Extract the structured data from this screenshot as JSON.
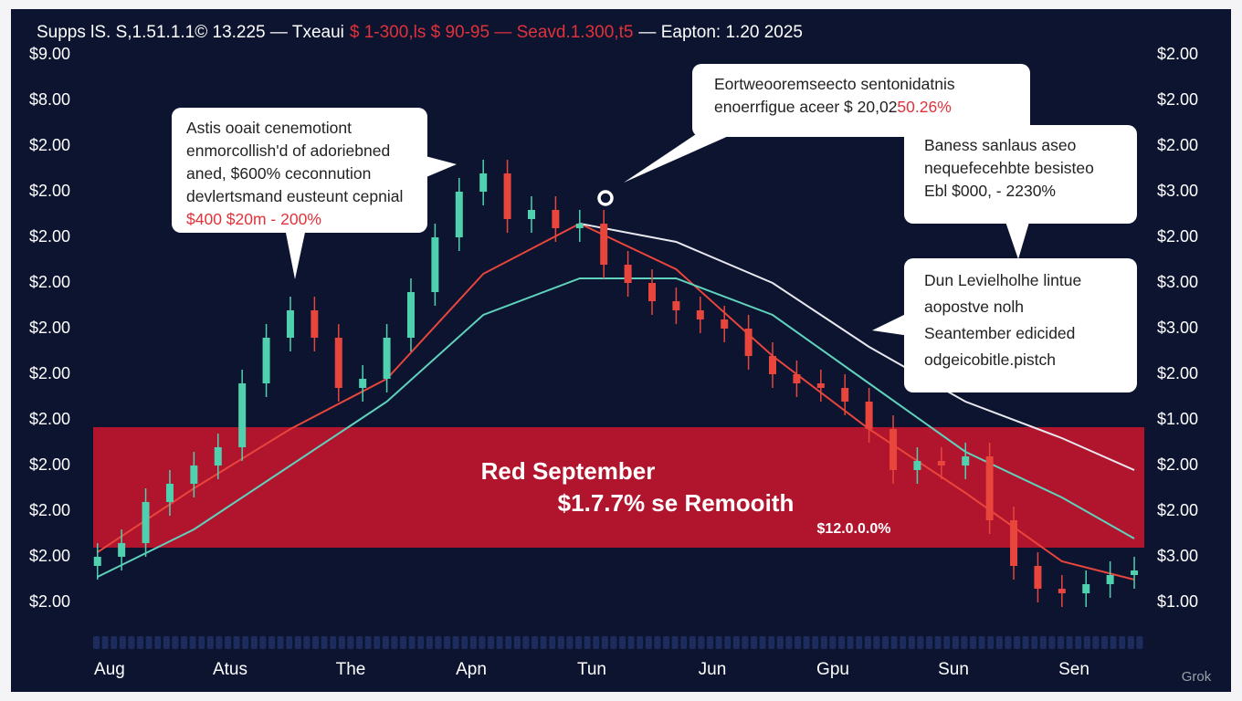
{
  "chart_data": {
    "type": "candlestick",
    "title": [
      {
        "text": "Supps lS. S,1.51.1.1© 13.225 — Txeaui",
        "color": "#ffffff"
      },
      {
        "text": "$ 1-300,ls $ 90-95 — Seavd.1.300,t5",
        "color": "#e0323a"
      },
      {
        "text": "— Eapton: 1.20 2025",
        "color": "#ffffff"
      }
    ],
    "x": [
      -0.1,
      0.1,
      0.3,
      0.5,
      0.7,
      0.9,
      1.1,
      1.3,
      1.5,
      1.7,
      1.9,
      2.1,
      2.3,
      2.5,
      2.7,
      2.9,
      3.1,
      3.3,
      3.5,
      3.7,
      3.9,
      4.1,
      4.3,
      4.5,
      4.7,
      4.9,
      5.1,
      5.3,
      5.5,
      5.7,
      5.9,
      6.1,
      6.3,
      6.5,
      6.7,
      6.9,
      7.1,
      7.3,
      7.5,
      7.7,
      7.9,
      8.1,
      8.3,
      8.5
    ],
    "open": [
      0.8,
      1.0,
      1.3,
      2.2,
      2.6,
      3.0,
      3.4,
      4.8,
      5.8,
      6.4,
      5.8,
      4.7,
      4.9,
      5.8,
      6.8,
      8.0,
      9.0,
      9.4,
      8.4,
      8.6,
      8.2,
      8.3,
      7.4,
      7.0,
      6.6,
      6.4,
      6.2,
      6.0,
      5.4,
      5.0,
      4.8,
      4.7,
      4.4,
      3.8,
      2.9,
      3.1,
      3.0,
      3.2,
      1.8,
      0.8,
      0.3,
      0.2,
      0.4,
      0.6
    ],
    "high": [
      1.3,
      1.6,
      2.5,
      2.9,
      3.3,
      3.7,
      5.1,
      6.1,
      6.7,
      6.7,
      6.1,
      5.2,
      6.1,
      7.1,
      8.3,
      9.3,
      9.7,
      9.7,
      8.9,
      8.9,
      8.6,
      8.6,
      7.7,
      7.3,
      6.9,
      6.7,
      6.5,
      6.3,
      5.7,
      5.3,
      5.1,
      5.0,
      4.7,
      4.1,
      3.4,
      3.4,
      3.5,
      3.5,
      2.1,
      1.1,
      0.6,
      0.7,
      0.9,
      1.0
    ],
    "low": [
      0.5,
      0.7,
      1.0,
      1.9,
      2.3,
      2.7,
      3.1,
      4.5,
      5.5,
      5.5,
      4.4,
      4.4,
      4.6,
      5.5,
      6.5,
      7.7,
      8.7,
      8.1,
      8.1,
      7.9,
      7.9,
      7.1,
      6.7,
      6.3,
      6.1,
      5.9,
      5.7,
      5.1,
      4.7,
      4.5,
      4.4,
      4.1,
      3.5,
      2.6,
      2.6,
      2.7,
      2.7,
      1.5,
      0.5,
      0.0,
      -0.1,
      -0.1,
      0.1,
      0.3
    ],
    "close": [
      1.0,
      1.3,
      2.2,
      2.6,
      3.0,
      3.4,
      4.8,
      5.8,
      6.4,
      5.8,
      4.7,
      4.9,
      5.8,
      6.8,
      8.0,
      9.0,
      9.4,
      8.4,
      8.6,
      8.2,
      8.3,
      7.4,
      7.0,
      6.6,
      6.4,
      6.2,
      6.0,
      5.4,
      5.0,
      4.8,
      4.7,
      4.4,
      3.8,
      2.9,
      3.1,
      3.0,
      3.2,
      1.8,
      0.8,
      0.3,
      0.2,
      0.4,
      0.6,
      0.7
    ],
    "up_color": "#4fd1b0",
    "down_color": "#e8453c",
    "series": [
      {
        "color": "#e8453c",
        "x": [
          -0.1,
          0.7,
          1.5,
          2.3,
          3.1,
          3.9,
          4.7,
          5.5,
          6.3,
          7.1,
          7.9,
          8.5
        ],
        "values": [
          1.1,
          2.5,
          3.8,
          4.9,
          7.2,
          8.3,
          7.3,
          5.4,
          3.8,
          2.4,
          0.9,
          0.5
        ]
      },
      {
        "color": "#5fd3bd",
        "x": [
          -0.1,
          0.7,
          1.5,
          2.3,
          3.1,
          3.9,
          4.7,
          5.5,
          6.3,
          7.1,
          7.9,
          8.5
        ],
        "values": [
          0.56,
          1.6,
          3.0,
          4.4,
          6.3,
          7.1,
          7.1,
          6.3,
          4.8,
          3.3,
          2.3,
          1.4
        ]
      },
      {
        "color": "#e8e8ee",
        "x": [
          3.9,
          4.7,
          5.5,
          6.3,
          7.1,
          7.9,
          8.5
        ],
        "values": [
          8.3,
          7.9,
          7.0,
          5.6,
          4.4,
          3.6,
          2.9
        ]
      }
    ],
    "highlight_range": [
      1.2,
      3.84
    ],
    "highlight_color": "#c8142c",
    "highlight_labels": [
      "Red September",
      "$1.7.7% se Remooith",
      "$12.0.0.0%"
    ],
    "xlim": [
      -0.136,
      8.583
    ],
    "xticks": [
      {
        "value": 0,
        "label": "Aug"
      },
      {
        "value": 1,
        "label": "Atus"
      },
      {
        "value": 2,
        "label": "The"
      },
      {
        "value": 3,
        "label": "Apn"
      },
      {
        "value": 4,
        "label": "Tun"
      },
      {
        "value": 5,
        "label": "Jun"
      },
      {
        "value": 6,
        "label": "Gpu"
      },
      {
        "value": 7,
        "label": "Sun"
      },
      {
        "value": 8,
        "label": "Sen"
      }
    ],
    "ylim": [
      -0.8,
      12.3
    ],
    "yticks": [
      {
        "value": 12,
        "label": "$9.00"
      },
      {
        "value": 11,
        "label": "$8.00"
      },
      {
        "value": 10,
        "label": "$2.00"
      },
      {
        "value": 9,
        "label": "$2.00"
      },
      {
        "value": 8,
        "label": "$2.00"
      },
      {
        "value": 7,
        "label": "$2.00"
      },
      {
        "value": 6,
        "label": "$2.00"
      },
      {
        "value": 5,
        "label": "$2.00"
      },
      {
        "value": 4,
        "label": "$2.00"
      },
      {
        "value": 3,
        "label": "$2.00"
      },
      {
        "value": 2,
        "label": "$2.00"
      },
      {
        "value": 1,
        "label": "$2.00"
      },
      {
        "value": 0,
        "label": "$2.00"
      }
    ],
    "y2lim": [
      -0.8,
      12.3
    ],
    "y2ticks": [
      {
        "value": 12,
        "label": "$2.00"
      },
      {
        "value": 11,
        "label": "$2.00"
      },
      {
        "value": 10,
        "label": "$2.00"
      },
      {
        "value": 9,
        "label": "$3.00"
      },
      {
        "value": 8,
        "label": "$2.00"
      },
      {
        "value": 7,
        "label": "$3.00"
      },
      {
        "value": 6,
        "label": "$3.00"
      },
      {
        "value": 5,
        "label": "$2.00"
      },
      {
        "value": 4,
        "label": "$1.00"
      },
      {
        "value": 3,
        "label": "$2.00"
      },
      {
        "value": 2,
        "label": "$2.00"
      },
      {
        "value": 1,
        "label": "$3.00"
      },
      {
        "value": 0,
        "label": "$1.00"
      }
    ],
    "annotations": [
      {
        "lines": [
          "Astis ooait cenemotiont",
          "enmorcollish'd of adoriebned",
          "aned, $600% ceconnution",
          "devlertsmand eusteunt cepnial",
          [
            {
              "text": "$400 $20m - 200%",
              "color": "#e0323a"
            }
          ]
        ]
      },
      {
        "lines": [
          "Eortweooremseecto sentonidatnis",
          [
            {
              "text": "enoerrfigue aceer $ 20,02",
              "color": "#222222"
            },
            {
              "text": "50.26%",
              "color": "#e0323a"
            }
          ]
        ]
      },
      {
        "lines": [
          "Baness sanlaus aseo",
          "nequefecehbte besisteo",
          "Ebl $000, - 2230%"
        ]
      },
      {
        "lines": [
          "Dun Levielholhe lintue",
          "aopostve nolh",
          "Seantember edicided",
          "odgeicobitle.pistch"
        ]
      }
    ],
    "watermark": "Grok"
  }
}
